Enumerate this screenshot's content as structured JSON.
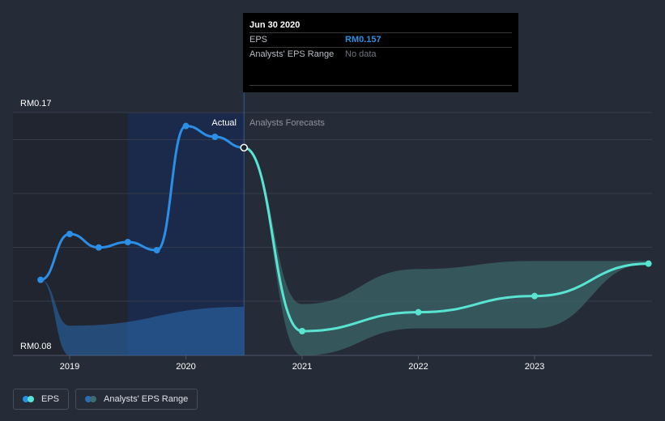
{
  "colors": {
    "background": "#262b38",
    "eps_actual": "#2b8fe8",
    "eps_forecast": "#59e4d2",
    "range_actual": "#2a6db5",
    "range_forecast": "#3d6d6e",
    "past_band": "#1b2a4a"
  },
  "tooltip": {
    "date": "Jun 30 2020",
    "eps_label": "EPS",
    "eps_value": "RM0.157",
    "range_label": "Analysts' EPS Range",
    "range_value": "No data"
  },
  "labels": {
    "actual": "Actual",
    "forecast": "Analysts Forecasts"
  },
  "legend": {
    "eps": "EPS",
    "range": "Analysts' EPS Range"
  },
  "chart_data": {
    "type": "line",
    "y_axis_labels": [
      "RM0.17",
      "RM0.08"
    ],
    "ylim": [
      0.08,
      0.17
    ],
    "xlim": [
      2018.0,
      2023.98
    ],
    "x_tick_labels": [
      "2019",
      "2020",
      "2021",
      "2022",
      "2023"
    ],
    "x_ticks": [
      2019,
      2020,
      2021,
      2022,
      2023
    ],
    "grid": true,
    "divider_x": 2020.5,
    "series": [
      {
        "name": "EPS",
        "kind": "actual",
        "points": [
          [
            2018.75,
            0.108
          ],
          [
            2019.0,
            0.125
          ],
          [
            2019.25,
            0.12
          ],
          [
            2019.5,
            0.122
          ],
          [
            2019.75,
            0.119
          ],
          [
            2020.0,
            0.165
          ],
          [
            2020.25,
            0.161
          ],
          [
            2020.5,
            0.157
          ]
        ]
      },
      {
        "name": "EPS",
        "kind": "forecast",
        "points": [
          [
            2020.5,
            0.157
          ],
          [
            2021.0,
            0.089
          ],
          [
            2022.0,
            0.096
          ],
          [
            2023.0,
            0.102
          ],
          [
            2023.98,
            0.114
          ]
        ]
      }
    ],
    "range_actual": {
      "x": [
        2018.75,
        2019.0,
        2020.5
      ],
      "low": [
        0.108,
        0.08,
        0.08
      ],
      "high": [
        0.108,
        0.091,
        0.098
      ]
    },
    "range_forecast": {
      "x": [
        2020.5,
        2021.0,
        2022.0,
        2023.0,
        2023.98
      ],
      "low": [
        0.157,
        0.08,
        0.09,
        0.09,
        0.114
      ],
      "high": [
        0.157,
        0.099,
        0.112,
        0.115,
        0.115
      ]
    }
  }
}
